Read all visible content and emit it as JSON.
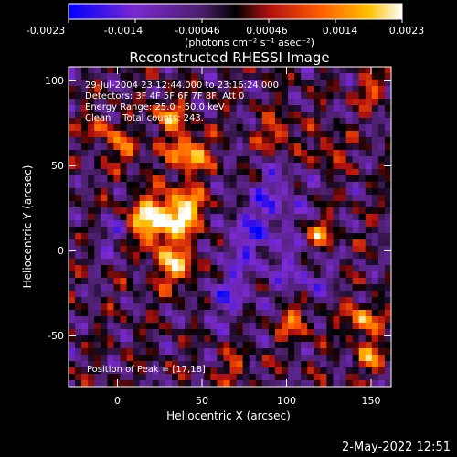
{
  "chart_data": {
    "type": "heatmap",
    "title": "Reconstructed RHESSI Image",
    "xlabel": "Heliocentric X (arcsec)",
    "ylabel": "Heliocentric Y (arcsec)",
    "xlim": [
      -29,
      162
    ],
    "ylim": [
      -79,
      109
    ],
    "x_ticks": [
      0,
      50,
      100,
      150
    ],
    "y_ticks": [
      -50,
      0,
      50,
      100
    ],
    "colorbar": {
      "range": [
        -0.0023,
        0.0023
      ],
      "ticks": [
        -0.0023,
        -0.0014,
        -0.00046,
        0.00046,
        0.0014,
        0.0023
      ],
      "tick_labels": [
        "-0.0023",
        "-0.0014",
        "-0.00046",
        "0.00046",
        "0.0014",
        "0.0023"
      ],
      "unit_label": "(photons cm⁻² s⁻¹ asec⁻²)",
      "stops": [
        "#0000ff",
        "#7a2ad0",
        "#4b1f6a",
        "#000000",
        "#b01010",
        "#ff5a00",
        "#ffc000",
        "#ffffff"
      ]
    },
    "annotations": [
      "29-Jul-2004 23:12:44.000 to 23:16:24.000",
      "Detectors: 3F 4F 5F 6F 7F 8F, Att 0",
      "Energy Range: 25.0 - 50.0 keV",
      "Clean    Total counts: 243.",
      "Position of Peak = [17,18]"
    ],
    "peak": [
      17,
      18
    ],
    "bright_sources": [
      {
        "x": 20,
        "y": 18,
        "amp": 1.0,
        "sigma": 10
      },
      {
        "x": 40,
        "y": 24,
        "amp": 0.9,
        "sigma": 9
      },
      {
        "x": 42,
        "y": 58,
        "amp": 0.85,
        "sigma": 8
      },
      {
        "x": 35,
        "y": -8,
        "amp": 0.75,
        "sigma": 9
      },
      {
        "x": 30,
        "y": 80,
        "amp": 0.6,
        "sigma": 7
      },
      {
        "x": 5,
        "y": 60,
        "amp": 0.55,
        "sigma": 6
      },
      {
        "x": -10,
        "y": 72,
        "amp": 0.5,
        "sigma": 6
      },
      {
        "x": 120,
        "y": 10,
        "amp": 0.6,
        "sigma": 6
      },
      {
        "x": 145,
        "y": -40,
        "amp": 0.7,
        "sigma": 7
      },
      {
        "x": 150,
        "y": -62,
        "amp": 0.6,
        "sigma": 6
      },
      {
        "x": 105,
        "y": -40,
        "amp": 0.55,
        "sigma": 7
      },
      {
        "x": 95,
        "y": 70,
        "amp": 0.5,
        "sigma": 7
      },
      {
        "x": 150,
        "y": 95,
        "amp": 0.45,
        "sigma": 6
      },
      {
        "x": 125,
        "y": 60,
        "amp": 0.45,
        "sigma": 6
      },
      {
        "x": 70,
        "y": -68,
        "amp": 0.4,
        "sigma": 6
      }
    ],
    "dark_regions": [
      {
        "x": 80,
        "y": 10,
        "amp": 0.7,
        "sigma": 14
      },
      {
        "x": 65,
        "y": -25,
        "amp": 0.6,
        "sigma": 12
      },
      {
        "x": 95,
        "y": 35,
        "amp": 0.55,
        "sigma": 12
      },
      {
        "x": 0,
        "y": 10,
        "amp": 0.5,
        "sigma": 9
      },
      {
        "x": 110,
        "y": -15,
        "amp": 0.5,
        "sigma": 12
      }
    ]
  },
  "footer": {
    "date": "2-May-2022 12:51"
  }
}
